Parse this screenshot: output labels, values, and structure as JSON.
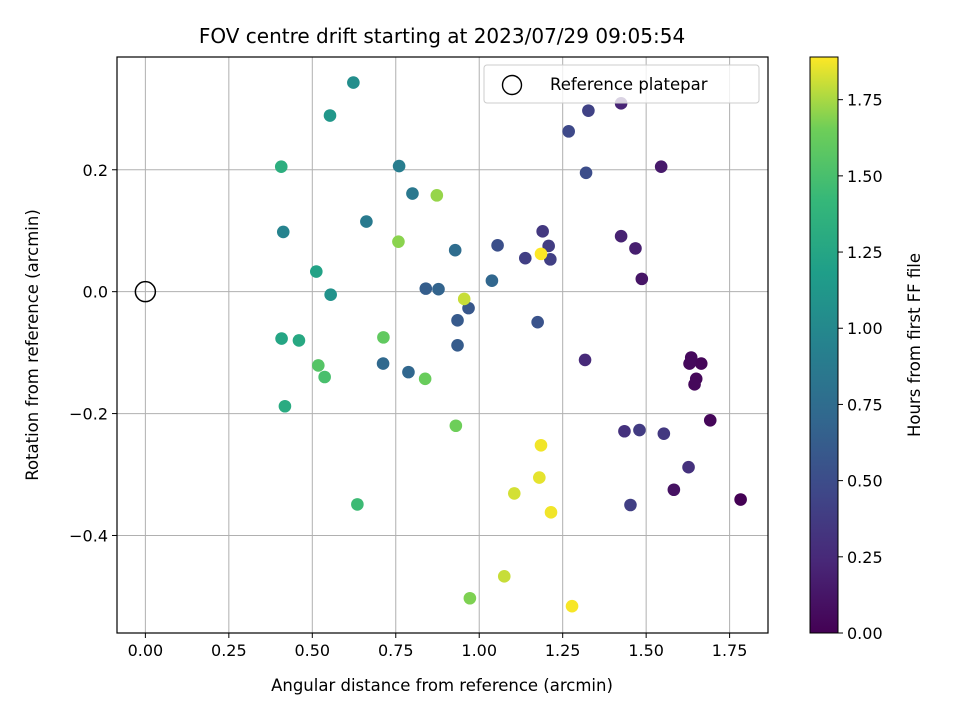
{
  "chart_data": {
    "type": "scatter",
    "title": "FOV centre drift starting at 2023/07/29 09:05:54",
    "xlabel": "Angular distance from reference (arcmin)",
    "ylabel": "Rotation from reference (arcmin)",
    "colorbar_label": "Hours from first FF file",
    "xlim": [
      -0.085,
      1.865
    ],
    "ylim": [
      -0.56,
      0.385
    ],
    "clim": [
      0.0,
      1.89
    ],
    "colormap": "viridis",
    "grid": true,
    "legend_position": "top-right",
    "x_ticks": [
      0.0,
      0.25,
      0.5,
      0.75,
      1.0,
      1.25,
      1.5,
      1.75
    ],
    "x_tick_labels": [
      "0.00",
      "0.25",
      "0.50",
      "0.75",
      "1.00",
      "1.25",
      "1.50",
      "1.75"
    ],
    "y_ticks": [
      -0.4,
      -0.2,
      0.0,
      0.2
    ],
    "y_tick_labels": [
      "−0.4",
      "−0.2",
      "0.0",
      "0.2"
    ],
    "c_ticks": [
      0.0,
      0.25,
      0.5,
      0.75,
      1.0,
      1.25,
      1.5,
      1.75
    ],
    "c_tick_labels": [
      "0.00",
      "0.25",
      "0.50",
      "0.75",
      "1.00",
      "1.25",
      "1.50",
      "1.75"
    ],
    "reference": {
      "name": "Reference platepar",
      "x": 0.0,
      "y": 0.0
    },
    "points": [
      {
        "x": 1.783,
        "y": -0.341,
        "h": 0.0
      },
      {
        "x": 1.692,
        "y": -0.211,
        "h": 0.03
      },
      {
        "x": 1.665,
        "y": -0.118,
        "h": 0.03
      },
      {
        "x": 1.65,
        "y": -0.143,
        "h": 0.04
      },
      {
        "x": 1.645,
        "y": -0.152,
        "h": 0.04
      },
      {
        "x": 1.635,
        "y": -0.108,
        "h": 0.05
      },
      {
        "x": 1.63,
        "y": -0.118,
        "h": 0.05
      },
      {
        "x": 1.583,
        "y": -0.325,
        "h": 0.1
      },
      {
        "x": 1.487,
        "y": 0.021,
        "h": 0.12
      },
      {
        "x": 1.545,
        "y": 0.205,
        "h": 0.15
      },
      {
        "x": 1.468,
        "y": 0.071,
        "h": 0.18
      },
      {
        "x": 1.425,
        "y": 0.091,
        "h": 0.2
      },
      {
        "x": 1.425,
        "y": 0.309,
        "h": 0.22
      },
      {
        "x": 1.317,
        "y": -0.112,
        "h": 0.25
      },
      {
        "x": 1.627,
        "y": -0.288,
        "h": 0.3
      },
      {
        "x": 1.435,
        "y": -0.229,
        "h": 0.3
      },
      {
        "x": 1.553,
        "y": -0.233,
        "h": 0.35
      },
      {
        "x": 1.48,
        "y": -0.227,
        "h": 0.37
      },
      {
        "x": 1.453,
        "y": -0.35,
        "h": 0.4
      },
      {
        "x": 1.327,
        "y": 0.297,
        "h": 0.42
      },
      {
        "x": 1.19,
        "y": 0.099,
        "h": 0.35
      },
      {
        "x": 1.208,
        "y": 0.075,
        "h": 0.38
      },
      {
        "x": 1.213,
        "y": 0.053,
        "h": 0.4
      },
      {
        "x": 1.138,
        "y": 0.055,
        "h": 0.4
      },
      {
        "x": 1.268,
        "y": 0.263,
        "h": 0.47
      },
      {
        "x": 1.32,
        "y": 0.195,
        "h": 0.5
      },
      {
        "x": 1.055,
        "y": 0.076,
        "h": 0.52
      },
      {
        "x": 1.175,
        "y": -0.05,
        "h": 0.55
      },
      {
        "x": 0.968,
        "y": -0.027,
        "h": 0.58
      },
      {
        "x": 0.935,
        "y": -0.047,
        "h": 0.6
      },
      {
        "x": 0.935,
        "y": -0.088,
        "h": 0.62
      },
      {
        "x": 0.84,
        "y": 0.005,
        "h": 0.63
      },
      {
        "x": 0.878,
        "y": 0.004,
        "h": 0.68
      },
      {
        "x": 1.038,
        "y": 0.018,
        "h": 0.7
      },
      {
        "x": 0.788,
        "y": -0.132,
        "h": 0.7
      },
      {
        "x": 0.712,
        "y": -0.118,
        "h": 0.72
      },
      {
        "x": 0.928,
        "y": 0.068,
        "h": 0.75
      },
      {
        "x": 0.8,
        "y": 0.161,
        "h": 0.85
      },
      {
        "x": 0.662,
        "y": 0.115,
        "h": 0.87
      },
      {
        "x": 0.76,
        "y": 0.206,
        "h": 0.9
      },
      {
        "x": 0.413,
        "y": 0.098,
        "h": 0.95
      },
      {
        "x": 0.623,
        "y": 0.343,
        "h": 1.05
      },
      {
        "x": 0.555,
        "y": -0.005,
        "h": 1.08
      },
      {
        "x": 0.553,
        "y": 0.289,
        "h": 1.12
      },
      {
        "x": 0.512,
        "y": 0.033,
        "h": 1.22
      },
      {
        "x": 0.408,
        "y": -0.077,
        "h": 1.25
      },
      {
        "x": 0.46,
        "y": -0.08,
        "h": 1.28
      },
      {
        "x": 0.418,
        "y": -0.188,
        "h": 1.3
      },
      {
        "x": 0.407,
        "y": 0.205,
        "h": 1.33
      },
      {
        "x": 0.635,
        "y": -0.349,
        "h": 1.45
      },
      {
        "x": 0.537,
        "y": -0.14,
        "h": 1.5
      },
      {
        "x": 0.518,
        "y": -0.121,
        "h": 1.55
      },
      {
        "x": 0.713,
        "y": -0.075,
        "h": 1.6
      },
      {
        "x": 0.838,
        "y": -0.143,
        "h": 1.63
      },
      {
        "x": 0.93,
        "y": -0.22,
        "h": 1.65
      },
      {
        "x": 0.972,
        "y": -0.503,
        "h": 1.68
      },
      {
        "x": 0.758,
        "y": 0.082,
        "h": 1.7
      },
      {
        "x": 0.873,
        "y": 0.158,
        "h": 1.72
      },
      {
        "x": 0.955,
        "y": -0.012,
        "h": 1.8
      },
      {
        "x": 1.075,
        "y": -0.467,
        "h": 1.8
      },
      {
        "x": 1.105,
        "y": -0.331,
        "h": 1.82
      },
      {
        "x": 1.18,
        "y": -0.305,
        "h": 1.85
      },
      {
        "x": 1.185,
        "y": -0.252,
        "h": 1.87
      },
      {
        "x": 1.215,
        "y": -0.362,
        "h": 1.87
      },
      {
        "x": 1.278,
        "y": -0.516,
        "h": 1.88
      },
      {
        "x": 1.185,
        "y": 0.062,
        "h": 1.89
      }
    ]
  }
}
